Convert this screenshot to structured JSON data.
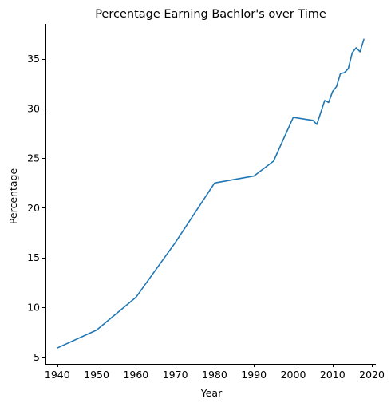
{
  "chart_data": {
    "type": "line",
    "title": "Percentage Earning Bachlor's over Time",
    "xlabel": "Year",
    "ylabel": "Percentage",
    "xlim": [
      1937,
      2021
    ],
    "ylim": [
      4.3,
      38.5
    ],
    "xticks": [
      1940,
      1950,
      1960,
      1970,
      1980,
      1990,
      2000,
      2010,
      2020
    ],
    "yticks": [
      5,
      10,
      15,
      20,
      25,
      30,
      35
    ],
    "grid": false,
    "color": "#1f77b4",
    "series": [
      {
        "x": [
          1940,
          1950,
          1960,
          1970,
          1980,
          1990,
          1995,
          2000,
          2005,
          2006,
          2007,
          2008,
          2009,
          2010,
          2011,
          2012,
          2013,
          2014,
          2015,
          2016,
          2017,
          2018
        ],
        "y": [
          5.9,
          7.7,
          11.0,
          16.5,
          22.5,
          23.2,
          24.7,
          29.1,
          28.8,
          28.4,
          29.6,
          30.8,
          30.6,
          31.7,
          32.2,
          33.5,
          33.6,
          34.0,
          35.6,
          36.1,
          35.7,
          37.0
        ]
      }
    ]
  }
}
